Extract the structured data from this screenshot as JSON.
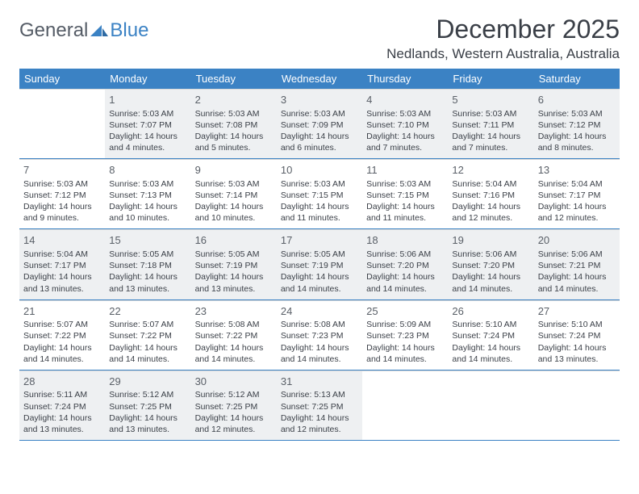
{
  "brand": {
    "gray": "General",
    "blue": "Blue"
  },
  "title": "December 2025",
  "location": "Nedlands, Western Australia, Australia",
  "colors": {
    "header_bg": "#3b82c4",
    "header_text": "#ffffff",
    "shaded_bg": "#eef0f2",
    "border": "#3b82c4",
    "cell_border": "#d9d9d9",
    "text": "#3a3f47"
  },
  "weekdays": [
    "Sunday",
    "Monday",
    "Tuesday",
    "Wednesday",
    "Thursday",
    "Friday",
    "Saturday"
  ],
  "weeks": [
    {
      "shaded": true,
      "cells": [
        null,
        {
          "n": "1",
          "sr": "Sunrise: 5:03 AM",
          "ss": "Sunset: 7:07 PM",
          "d1": "Daylight: 14 hours",
          "d2": "and 4 minutes."
        },
        {
          "n": "2",
          "sr": "Sunrise: 5:03 AM",
          "ss": "Sunset: 7:08 PM",
          "d1": "Daylight: 14 hours",
          "d2": "and 5 minutes."
        },
        {
          "n": "3",
          "sr": "Sunrise: 5:03 AM",
          "ss": "Sunset: 7:09 PM",
          "d1": "Daylight: 14 hours",
          "d2": "and 6 minutes."
        },
        {
          "n": "4",
          "sr": "Sunrise: 5:03 AM",
          "ss": "Sunset: 7:10 PM",
          "d1": "Daylight: 14 hours",
          "d2": "and 7 minutes."
        },
        {
          "n": "5",
          "sr": "Sunrise: 5:03 AM",
          "ss": "Sunset: 7:11 PM",
          "d1": "Daylight: 14 hours",
          "d2": "and 7 minutes."
        },
        {
          "n": "6",
          "sr": "Sunrise: 5:03 AM",
          "ss": "Sunset: 7:12 PM",
          "d1": "Daylight: 14 hours",
          "d2": "and 8 minutes."
        }
      ]
    },
    {
      "shaded": false,
      "cells": [
        {
          "n": "7",
          "sr": "Sunrise: 5:03 AM",
          "ss": "Sunset: 7:12 PM",
          "d1": "Daylight: 14 hours",
          "d2": "and 9 minutes."
        },
        {
          "n": "8",
          "sr": "Sunrise: 5:03 AM",
          "ss": "Sunset: 7:13 PM",
          "d1": "Daylight: 14 hours",
          "d2": "and 10 minutes."
        },
        {
          "n": "9",
          "sr": "Sunrise: 5:03 AM",
          "ss": "Sunset: 7:14 PM",
          "d1": "Daylight: 14 hours",
          "d2": "and 10 minutes."
        },
        {
          "n": "10",
          "sr": "Sunrise: 5:03 AM",
          "ss": "Sunset: 7:15 PM",
          "d1": "Daylight: 14 hours",
          "d2": "and 11 minutes."
        },
        {
          "n": "11",
          "sr": "Sunrise: 5:03 AM",
          "ss": "Sunset: 7:15 PM",
          "d1": "Daylight: 14 hours",
          "d2": "and 11 minutes."
        },
        {
          "n": "12",
          "sr": "Sunrise: 5:04 AM",
          "ss": "Sunset: 7:16 PM",
          "d1": "Daylight: 14 hours",
          "d2": "and 12 minutes."
        },
        {
          "n": "13",
          "sr": "Sunrise: 5:04 AM",
          "ss": "Sunset: 7:17 PM",
          "d1": "Daylight: 14 hours",
          "d2": "and 12 minutes."
        }
      ]
    },
    {
      "shaded": true,
      "cells": [
        {
          "n": "14",
          "sr": "Sunrise: 5:04 AM",
          "ss": "Sunset: 7:17 PM",
          "d1": "Daylight: 14 hours",
          "d2": "and 13 minutes."
        },
        {
          "n": "15",
          "sr": "Sunrise: 5:05 AM",
          "ss": "Sunset: 7:18 PM",
          "d1": "Daylight: 14 hours",
          "d2": "and 13 minutes."
        },
        {
          "n": "16",
          "sr": "Sunrise: 5:05 AM",
          "ss": "Sunset: 7:19 PM",
          "d1": "Daylight: 14 hours",
          "d2": "and 13 minutes."
        },
        {
          "n": "17",
          "sr": "Sunrise: 5:05 AM",
          "ss": "Sunset: 7:19 PM",
          "d1": "Daylight: 14 hours",
          "d2": "and 14 minutes."
        },
        {
          "n": "18",
          "sr": "Sunrise: 5:06 AM",
          "ss": "Sunset: 7:20 PM",
          "d1": "Daylight: 14 hours",
          "d2": "and 14 minutes."
        },
        {
          "n": "19",
          "sr": "Sunrise: 5:06 AM",
          "ss": "Sunset: 7:20 PM",
          "d1": "Daylight: 14 hours",
          "d2": "and 14 minutes."
        },
        {
          "n": "20",
          "sr": "Sunrise: 5:06 AM",
          "ss": "Sunset: 7:21 PM",
          "d1": "Daylight: 14 hours",
          "d2": "and 14 minutes."
        }
      ]
    },
    {
      "shaded": false,
      "cells": [
        {
          "n": "21",
          "sr": "Sunrise: 5:07 AM",
          "ss": "Sunset: 7:22 PM",
          "d1": "Daylight: 14 hours",
          "d2": "and 14 minutes."
        },
        {
          "n": "22",
          "sr": "Sunrise: 5:07 AM",
          "ss": "Sunset: 7:22 PM",
          "d1": "Daylight: 14 hours",
          "d2": "and 14 minutes."
        },
        {
          "n": "23",
          "sr": "Sunrise: 5:08 AM",
          "ss": "Sunset: 7:22 PM",
          "d1": "Daylight: 14 hours",
          "d2": "and 14 minutes."
        },
        {
          "n": "24",
          "sr": "Sunrise: 5:08 AM",
          "ss": "Sunset: 7:23 PM",
          "d1": "Daylight: 14 hours",
          "d2": "and 14 minutes."
        },
        {
          "n": "25",
          "sr": "Sunrise: 5:09 AM",
          "ss": "Sunset: 7:23 PM",
          "d1": "Daylight: 14 hours",
          "d2": "and 14 minutes."
        },
        {
          "n": "26",
          "sr": "Sunrise: 5:10 AM",
          "ss": "Sunset: 7:24 PM",
          "d1": "Daylight: 14 hours",
          "d2": "and 14 minutes."
        },
        {
          "n": "27",
          "sr": "Sunrise: 5:10 AM",
          "ss": "Sunset: 7:24 PM",
          "d1": "Daylight: 14 hours",
          "d2": "and 13 minutes."
        }
      ]
    },
    {
      "shaded": true,
      "cells": [
        {
          "n": "28",
          "sr": "Sunrise: 5:11 AM",
          "ss": "Sunset: 7:24 PM",
          "d1": "Daylight: 14 hours",
          "d2": "and 13 minutes."
        },
        {
          "n": "29",
          "sr": "Sunrise: 5:12 AM",
          "ss": "Sunset: 7:25 PM",
          "d1": "Daylight: 14 hours",
          "d2": "and 13 minutes."
        },
        {
          "n": "30",
          "sr": "Sunrise: 5:12 AM",
          "ss": "Sunset: 7:25 PM",
          "d1": "Daylight: 14 hours",
          "d2": "and 12 minutes."
        },
        {
          "n": "31",
          "sr": "Sunrise: 5:13 AM",
          "ss": "Sunset: 7:25 PM",
          "d1": "Daylight: 14 hours",
          "d2": "and 12 minutes."
        },
        null,
        null,
        null
      ]
    }
  ]
}
